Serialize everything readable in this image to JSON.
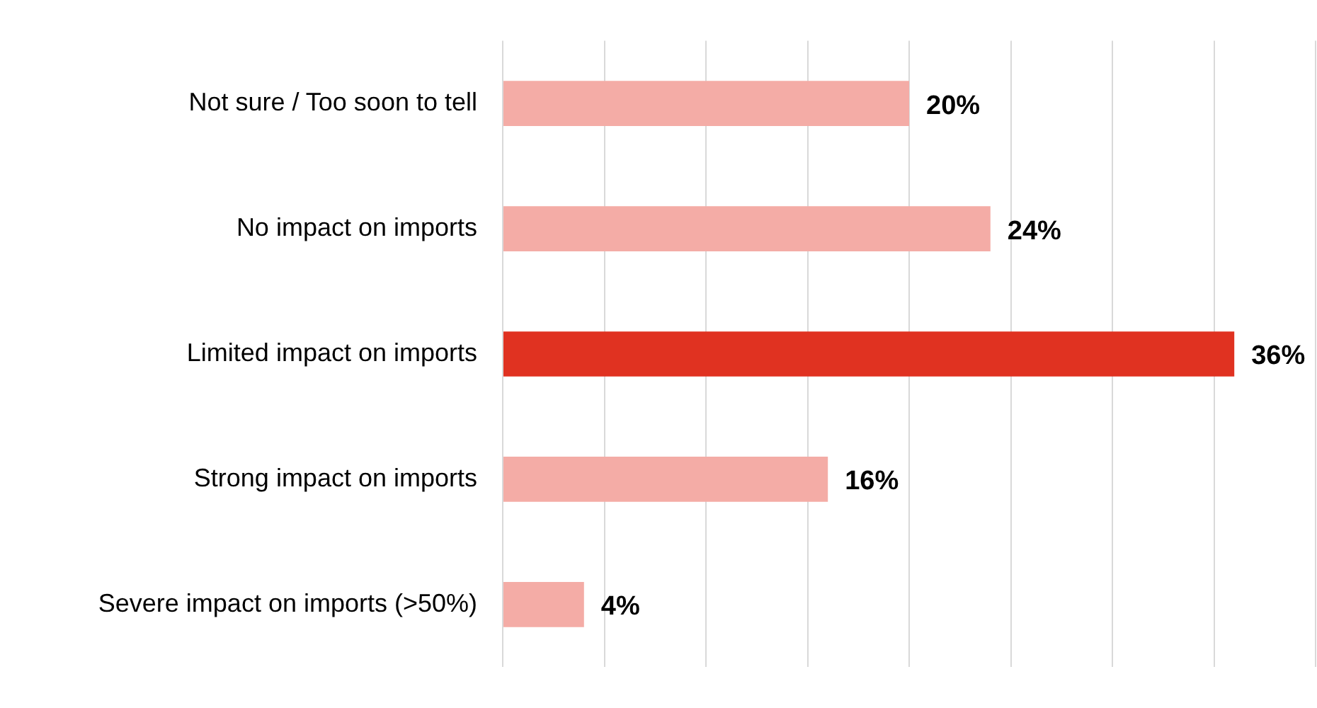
{
  "chart_data": {
    "type": "bar",
    "orientation": "horizontal",
    "categories": [
      "Not sure / Too soon to tell",
      "No impact on imports",
      "Limited impact on imports",
      "Strong impact on imports",
      "Severe impact on imports (>50%)"
    ],
    "values": [
      20,
      24,
      36,
      16,
      4
    ],
    "colors": [
      "#f4aca6",
      "#f4aca6",
      "#e03221",
      "#f4aca6",
      "#f4aca6"
    ],
    "value_labels": [
      "20%",
      "24%",
      "36%",
      "16%",
      "4%"
    ],
    "xlim": [
      0,
      40
    ],
    "xticks": [
      {
        "value": 0,
        "label": null
      },
      {
        "value": 5,
        "label": null
      },
      {
        "value": 10,
        "label": null
      },
      {
        "value": 15,
        "label": null
      },
      {
        "value": 20,
        "label": null
      },
      {
        "value": 25,
        "label": null
      },
      {
        "value": 30,
        "label": null
      },
      {
        "value": 35,
        "label": null
      },
      {
        "value": 40,
        "label": null
      }
    ],
    "grid": "x",
    "legend": false,
    "tick_labels": "y"
  }
}
